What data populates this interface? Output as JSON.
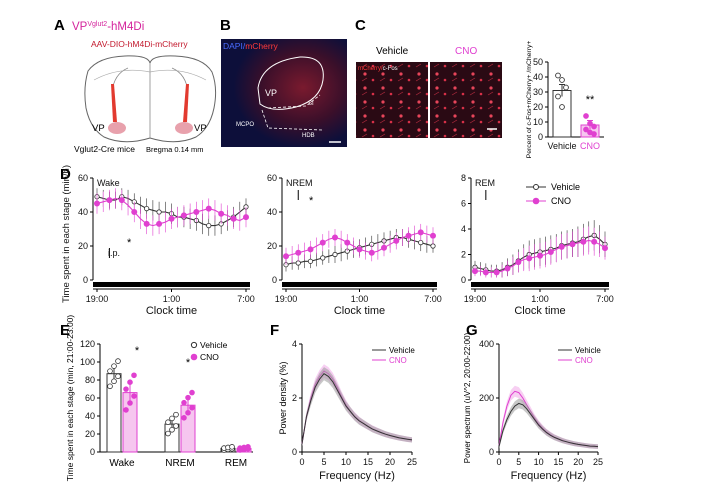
{
  "colors": {
    "vehicle": "#333333",
    "cno": "#e040d0",
    "mcherry": "#e0323c",
    "dapi_bg": "#0d0f3a",
    "magenta": "#d4249c"
  },
  "panels": {
    "A": {
      "letter": "A",
      "title_prefix": "VP",
      "title_sup": "Vglut2",
      "title_suffix": "-hM4Di",
      "virus": "AAV-DIO-hM4Di-mCherry",
      "label_left": "VP",
      "label_right": "VP",
      "mouse": "Vglut2-Cre mice",
      "bregma": "Bregma 0.14 mm"
    },
    "B": {
      "letter": "B",
      "stain_dapi": "DAPI/",
      "stain_mcherry": "mCherry",
      "regions": [
        "VP",
        "SI",
        "MCPO",
        "HDB"
      ]
    },
    "C": {
      "letter": "C",
      "col_vehicle": "Vehicle",
      "col_cno": "CNO",
      "stain_mcherry": "mCherry/",
      "stain_cfos": "c-Fos",
      "sig": "**"
    },
    "D": {
      "letter": "D",
      "ip_label": "i.p.",
      "sig": "*"
    },
    "E": {
      "letter": "E",
      "sig": "*"
    },
    "F": {
      "letter": "F"
    },
    "G": {
      "letter": "G"
    }
  },
  "chart_data": [
    {
      "type": "bar",
      "panel": "C",
      "categories": [
        "Vehicle",
        "CNO"
      ],
      "values": [
        31,
        8
      ],
      "errors": [
        4,
        3
      ],
      "points": [
        [
          41,
          38,
          33,
          27,
          20
        ],
        [
          14,
          9,
          7,
          5,
          3,
          2
        ]
      ],
      "ylabel": "Percent of c-Fos+mCherry+ /mCherry+",
      "ylim": [
        0,
        50
      ],
      "yticks": [
        "0",
        "10",
        "20",
        "30",
        "40",
        "50"
      ],
      "annotations": [
        "**"
      ]
    },
    {
      "type": "line",
      "panel": "D",
      "ylabel": "Time spent in each stage (min/h)",
      "xlabel": "Clock time",
      "xticks": [
        "19:00",
        "1:00",
        "7:00"
      ],
      "xlim": [
        19,
        31
      ],
      "legend": [
        "Vehicle",
        "CNO"
      ],
      "legend_position": "top-right",
      "subplots": [
        {
          "name": "Wake",
          "ylim": [
            0,
            60
          ],
          "yticks": [
            "0",
            "20",
            "40",
            "60"
          ],
          "x": [
            19,
            19.5,
            20,
            20.5,
            21,
            21.5,
            22,
            22.5,
            23,
            23.5,
            24,
            24.5,
            25,
            25.5,
            26,
            26.5,
            27,
            27.5,
            28,
            28.5,
            29,
            29.5,
            30,
            30.5,
            31
          ],
          "series": [
            {
              "name": "Vehicle",
              "values": [
                49,
                48,
                47,
                47,
                49,
                48,
                46,
                44,
                42,
                41,
                40,
                40,
                39,
                37,
                37,
                36,
                35,
                33,
                32,
                32,
                33,
                35,
                37,
                40,
                43
              ],
              "error": [
                5,
                5,
                5,
                5,
                5,
                5,
                5,
                5,
                6,
                6,
                6,
                6,
                6,
                6,
                6,
                6,
                6,
                6,
                6,
                6,
                6,
                6,
                6,
                6,
                5
              ]
            },
            {
              "name": "CNO",
              "values": [
                45,
                46,
                47,
                48,
                47,
                44,
                40,
                36,
                33,
                32,
                33,
                34,
                36,
                37,
                38,
                39,
                40,
                41,
                42,
                41,
                39,
                38,
                36,
                35,
                37
              ],
              "error": [
                6,
                6,
                6,
                6,
                6,
                6,
                6,
                6,
                6,
                6,
                6,
                6,
                6,
                6,
                6,
                6,
                6,
                6,
                6,
                6,
                6,
                6,
                6,
                6,
                6
              ]
            }
          ],
          "annotations": [
            "i.p.",
            "*"
          ]
        },
        {
          "name": "NREM",
          "ylim": [
            0,
            60
          ],
          "yticks": [
            "0",
            "20",
            "40",
            "60"
          ],
          "x": [
            19,
            19.5,
            20,
            20.5,
            21,
            21.5,
            22,
            22.5,
            23,
            23.5,
            24,
            24.5,
            25,
            25.5,
            26,
            26.5,
            27,
            27.5,
            28,
            28.5,
            29,
            29.5,
            30,
            30.5,
            31
          ],
          "series": [
            {
              "name": "Vehicle",
              "values": [
                9,
                10,
                10,
                11,
                11,
                12,
                13,
                14,
                15,
                16,
                17,
                18,
                19,
                20,
                21,
                22,
                23,
                24,
                25,
                25,
                24,
                23,
                22,
                21,
                20
              ],
              "error": [
                4,
                4,
                4,
                4,
                4,
                4,
                4,
                4,
                5,
                5,
                5,
                5,
                5,
                5,
                5,
                5,
                5,
                5,
                5,
                5,
                5,
                5,
                5,
                5,
                4
              ]
            },
            {
              "name": "CNO",
              "values": [
                14,
                15,
                16,
                17,
                18,
                20,
                22,
                24,
                25,
                24,
                22,
                20,
                18,
                17,
                16,
                17,
                19,
                21,
                23,
                25,
                26,
                27,
                28,
                27,
                26
              ],
              "error": [
                5,
                5,
                5,
                5,
                5,
                5,
                5,
                5,
                5,
                5,
                5,
                5,
                5,
                5,
                5,
                5,
                5,
                5,
                5,
                5,
                5,
                5,
                5,
                5,
                5
              ]
            }
          ],
          "annotations": [
            "*"
          ]
        },
        {
          "name": "REM",
          "ylim": [
            0,
            8
          ],
          "yticks": [
            "0",
            "2",
            "4",
            "6",
            "8"
          ],
          "x": [
            19,
            19.5,
            20,
            20.5,
            21,
            21.5,
            22,
            22.5,
            23,
            23.5,
            24,
            24.5,
            25,
            25.5,
            26,
            26.5,
            27,
            27.5,
            28,
            28.5,
            29,
            29.5,
            30,
            30.5,
            31
          ],
          "series": [
            {
              "name": "Vehicle",
              "values": [
                1,
                0.9,
                0.8,
                0.7,
                0.7,
                0.8,
                1.0,
                1.2,
                1.5,
                1.8,
                2.0,
                2.1,
                2.2,
                2.3,
                2.4,
                2.5,
                2.7,
                2.8,
                2.9,
                3.0,
                3.2,
                3.4,
                3.5,
                3.2,
                2.8
              ],
              "error": [
                0.5,
                0.5,
                0.5,
                0.5,
                0.5,
                0.6,
                0.7,
                0.8,
                0.9,
                1.0,
                1.1,
                1.1,
                1.1,
                1.1,
                1.1,
                1.1,
                1.1,
                1.1,
                1.1,
                1.2,
                1.2,
                1.2,
                1.2,
                1.1,
                1.0
              ]
            },
            {
              "name": "CNO",
              "values": [
                0.7,
                0.7,
                0.6,
                0.6,
                0.6,
                0.7,
                0.9,
                1.1,
                1.4,
                1.6,
                1.7,
                1.8,
                1.9,
                2.0,
                2.2,
                2.4,
                2.6,
                2.7,
                2.8,
                2.9,
                3.0,
                3.1,
                3.0,
                2.8,
                2.5
              ],
              "error": [
                0.4,
                0.4,
                0.4,
                0.4,
                0.4,
                0.5,
                0.6,
                0.7,
                0.8,
                0.9,
                1.0,
                1.0,
                1.0,
                1.0,
                1.0,
                1.0,
                1.0,
                1.0,
                1.0,
                1.1,
                1.1,
                1.1,
                1.1,
                1.0,
                0.9
              ]
            }
          ]
        }
      ]
    },
    {
      "type": "bar",
      "panel": "E",
      "categories": [
        "Wake",
        "NREM",
        "REM"
      ],
      "series": [
        {
          "name": "Vehicle",
          "values": [
            87,
            31,
            4
          ],
          "error": [
            8,
            6,
            1
          ]
        },
        {
          "name": "CNO",
          "values": [
            66,
            52,
            4
          ],
          "error": [
            11,
            8,
            1
          ]
        }
      ],
      "ylabel": "Time spent in each stage (min, 21:00-23:00)",
      "ylim": [
        0,
        120
      ],
      "yticks": [
        "0",
        "20",
        "40",
        "60",
        "80",
        "100",
        "120"
      ],
      "legend": [
        "Vehicle",
        "CNO"
      ],
      "legend_position": "top-right",
      "annotations": [
        "*",
        "*"
      ]
    },
    {
      "type": "area",
      "panel": "F",
      "xlabel": "Frequency (Hz)",
      "ylabel": "Power density (%)",
      "xlim": [
        0,
        25
      ],
      "ylim": [
        0,
        4
      ],
      "xticks": [
        "0",
        "5",
        "10",
        "15",
        "20",
        "25"
      ],
      "yticks": [
        "0",
        "2",
        "4"
      ],
      "legend": [
        "Vehicle",
        "CNO"
      ],
      "legend_position": "top-right",
      "x": [
        0,
        1,
        2,
        3,
        4,
        5,
        6,
        7,
        8,
        9,
        10,
        11,
        12,
        13,
        14,
        15,
        16,
        17,
        18,
        19,
        20,
        21,
        22,
        23,
        24,
        25
      ],
      "series": [
        {
          "name": "Vehicle",
          "values": [
            0.3,
            1.3,
            1.9,
            2.4,
            2.7,
            2.9,
            2.8,
            2.6,
            2.3,
            2.0,
            1.7,
            1.5,
            1.3,
            1.15,
            1.05,
            0.95,
            0.85,
            0.78,
            0.72,
            0.66,
            0.61,
            0.57,
            0.53,
            0.5,
            0.47,
            0.45
          ]
        },
        {
          "name": "CNO",
          "values": [
            0.3,
            1.3,
            2.0,
            2.5,
            2.8,
            3.0,
            2.9,
            2.7,
            2.4,
            2.05,
            1.75,
            1.5,
            1.32,
            1.17,
            1.05,
            0.95,
            0.86,
            0.79,
            0.72,
            0.66,
            0.61,
            0.57,
            0.53,
            0.5,
            0.47,
            0.45
          ]
        }
      ]
    },
    {
      "type": "area",
      "panel": "G",
      "xlabel": "Frequency (Hz)",
      "ylabel": "Power spectrum (uV^2, 20:00-22:00)",
      "xlim": [
        0,
        25
      ],
      "ylim": [
        0,
        400
      ],
      "xticks": [
        "0",
        "5",
        "10",
        "15",
        "20",
        "25"
      ],
      "yticks": [
        "0",
        "200",
        "400"
      ],
      "legend": [
        "Vehicle",
        "CNO"
      ],
      "legend_position": "top-right",
      "x": [
        0,
        1,
        2,
        3,
        4,
        5,
        6,
        7,
        8,
        9,
        10,
        11,
        12,
        13,
        14,
        15,
        16,
        17,
        18,
        19,
        20,
        21,
        22,
        23,
        24,
        25
      ],
      "series": [
        {
          "name": "Vehicle",
          "values": [
            20,
            80,
            120,
            150,
            170,
            180,
            175,
            160,
            140,
            120,
            100,
            85,
            72,
            62,
            54,
            48,
            42,
            38,
            34,
            31,
            28,
            26,
            24,
            22,
            21,
            20
          ]
        },
        {
          "name": "CNO",
          "values": [
            25,
            110,
            170,
            210,
            225,
            220,
            200,
            175,
            150,
            125,
            104,
            88,
            74,
            64,
            55,
            48,
            43,
            38,
            34,
            31,
            28,
            26,
            24,
            22,
            21,
            20
          ]
        }
      ]
    }
  ]
}
